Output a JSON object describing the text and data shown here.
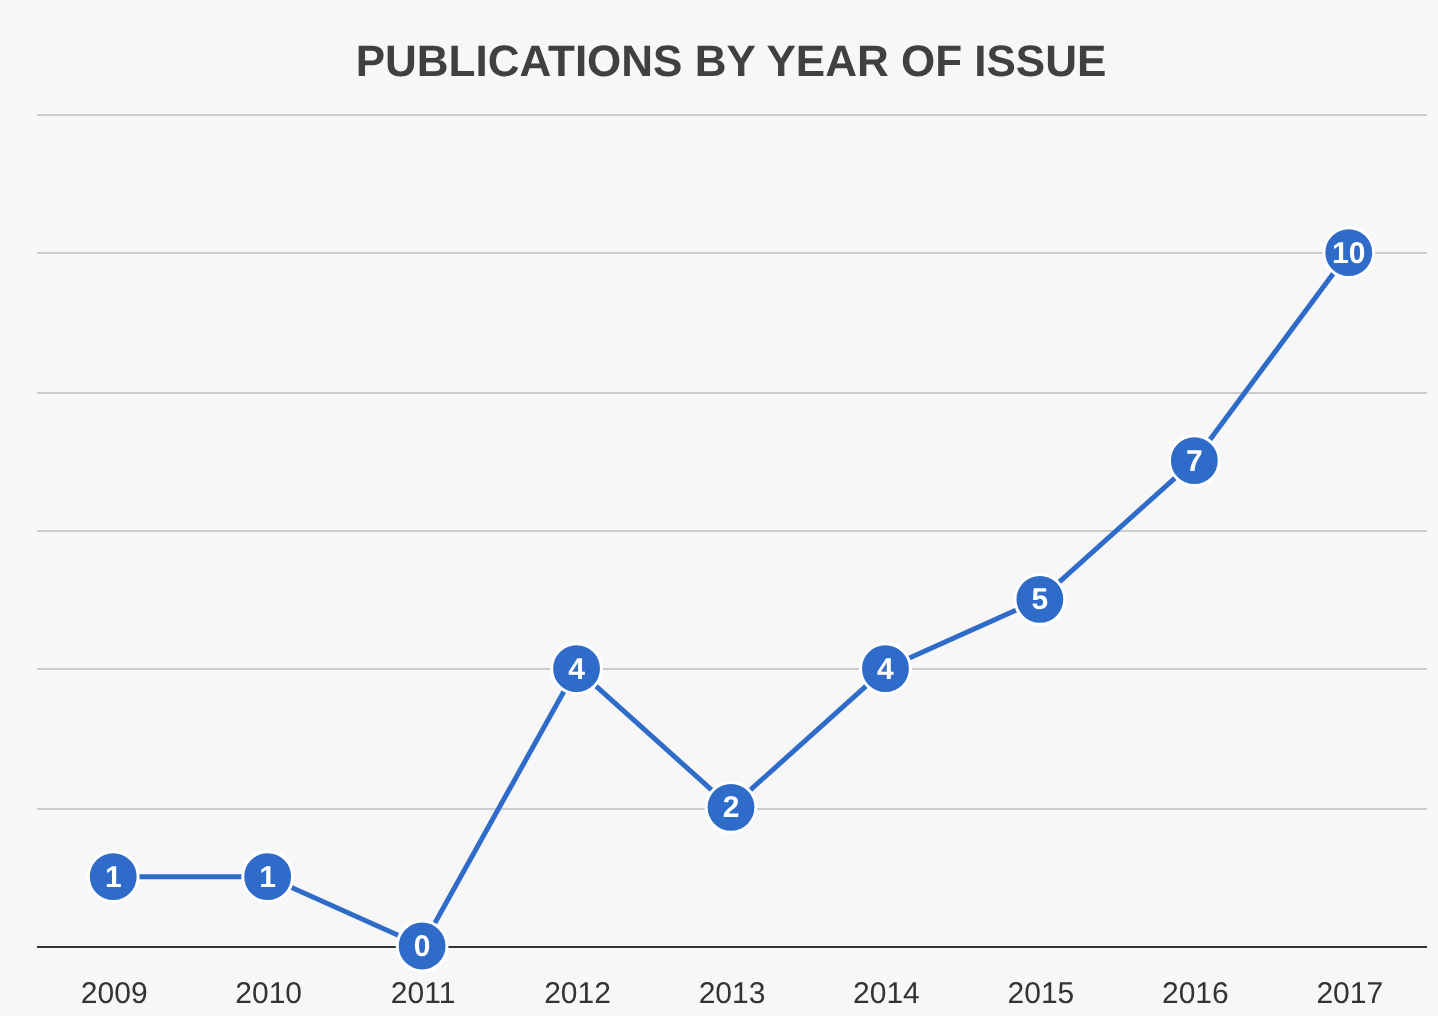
{
  "chart_data": {
    "type": "line",
    "title": "PUBLICATIONS BY YEAR OF ISSUE",
    "categories": [
      "2009",
      "2010",
      "2011",
      "2012",
      "2013",
      "2014",
      "2015",
      "2016",
      "2017"
    ],
    "series": [
      {
        "color": "#2f6cc9",
        "values": [
          1,
          1,
          0,
          4,
          2,
          4,
          5,
          7,
          10
        ]
      }
    ],
    "ylim": [
      0,
      12
    ],
    "yticks": [
      {
        "value": 0,
        "label": null
      },
      {
        "value": 2,
        "label": null
      },
      {
        "value": 4,
        "label": null
      },
      {
        "value": 6,
        "label": null
      },
      {
        "value": 8,
        "label": null
      },
      {
        "value": 10,
        "label": null
      },
      {
        "value": 12,
        "label": null
      }
    ],
    "tick_labels": "x",
    "grid": "y",
    "marker": "circle",
    "line_style": "solid",
    "data_labels": true
  }
}
